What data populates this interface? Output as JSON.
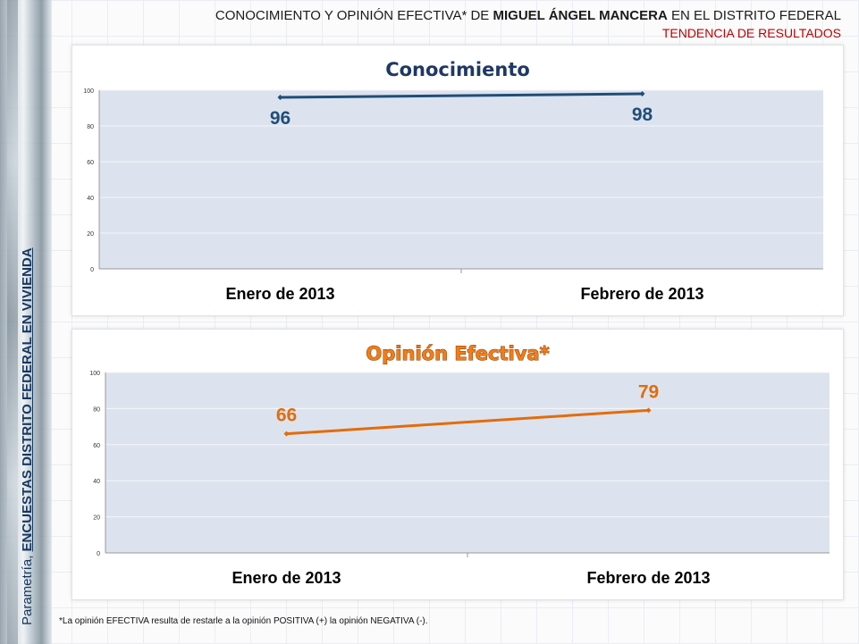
{
  "header": {
    "title_prefix": "CONOCIMIENTO Y OPINIÓN EFECTIVA* DE ",
    "title_bold": "MIGUEL ÁNGEL MANCERA",
    "title_suffix": " EN EL DISTRITO FEDERAL",
    "subtitle": "TENDENCIA DE RESULTADOS"
  },
  "side_label": {
    "light": "Parametría, ",
    "bold": "ENCUESTAS DISTRITO FEDERAL EN VIVIENDA"
  },
  "footnote": "*La opinión EFECTIVA resulta de restarle a la opinión POSITIVA (+) la opinión NEGATIVA (-).",
  "colors": {
    "series_1": "#1f4e79",
    "series_2": "#e36c09",
    "plot_bg": "#dce3ee",
    "title_2": "#f07d1a"
  },
  "chart_data": [
    {
      "type": "line",
      "title": "Conocimiento",
      "categories": [
        "Enero de 2013",
        "Febrero de 2013"
      ],
      "values": [
        96,
        98
      ],
      "data_labels": [
        "96",
        "98"
      ],
      "ylim": [
        0,
        100
      ],
      "yticks": [
        "0",
        "20",
        "40",
        "60",
        "80",
        "100"
      ],
      "grid": true,
      "color": "#1f4e79"
    },
    {
      "type": "line",
      "title": "Opinión Efectiva*",
      "categories": [
        "Enero de 2013",
        "Febrero de 2013"
      ],
      "values": [
        66,
        79
      ],
      "data_labels": [
        "66",
        "79"
      ],
      "ylim": [
        0,
        100
      ],
      "yticks": [
        "0",
        "20",
        "40",
        "60",
        "80",
        "100"
      ],
      "grid": true,
      "color": "#e36c09"
    }
  ]
}
